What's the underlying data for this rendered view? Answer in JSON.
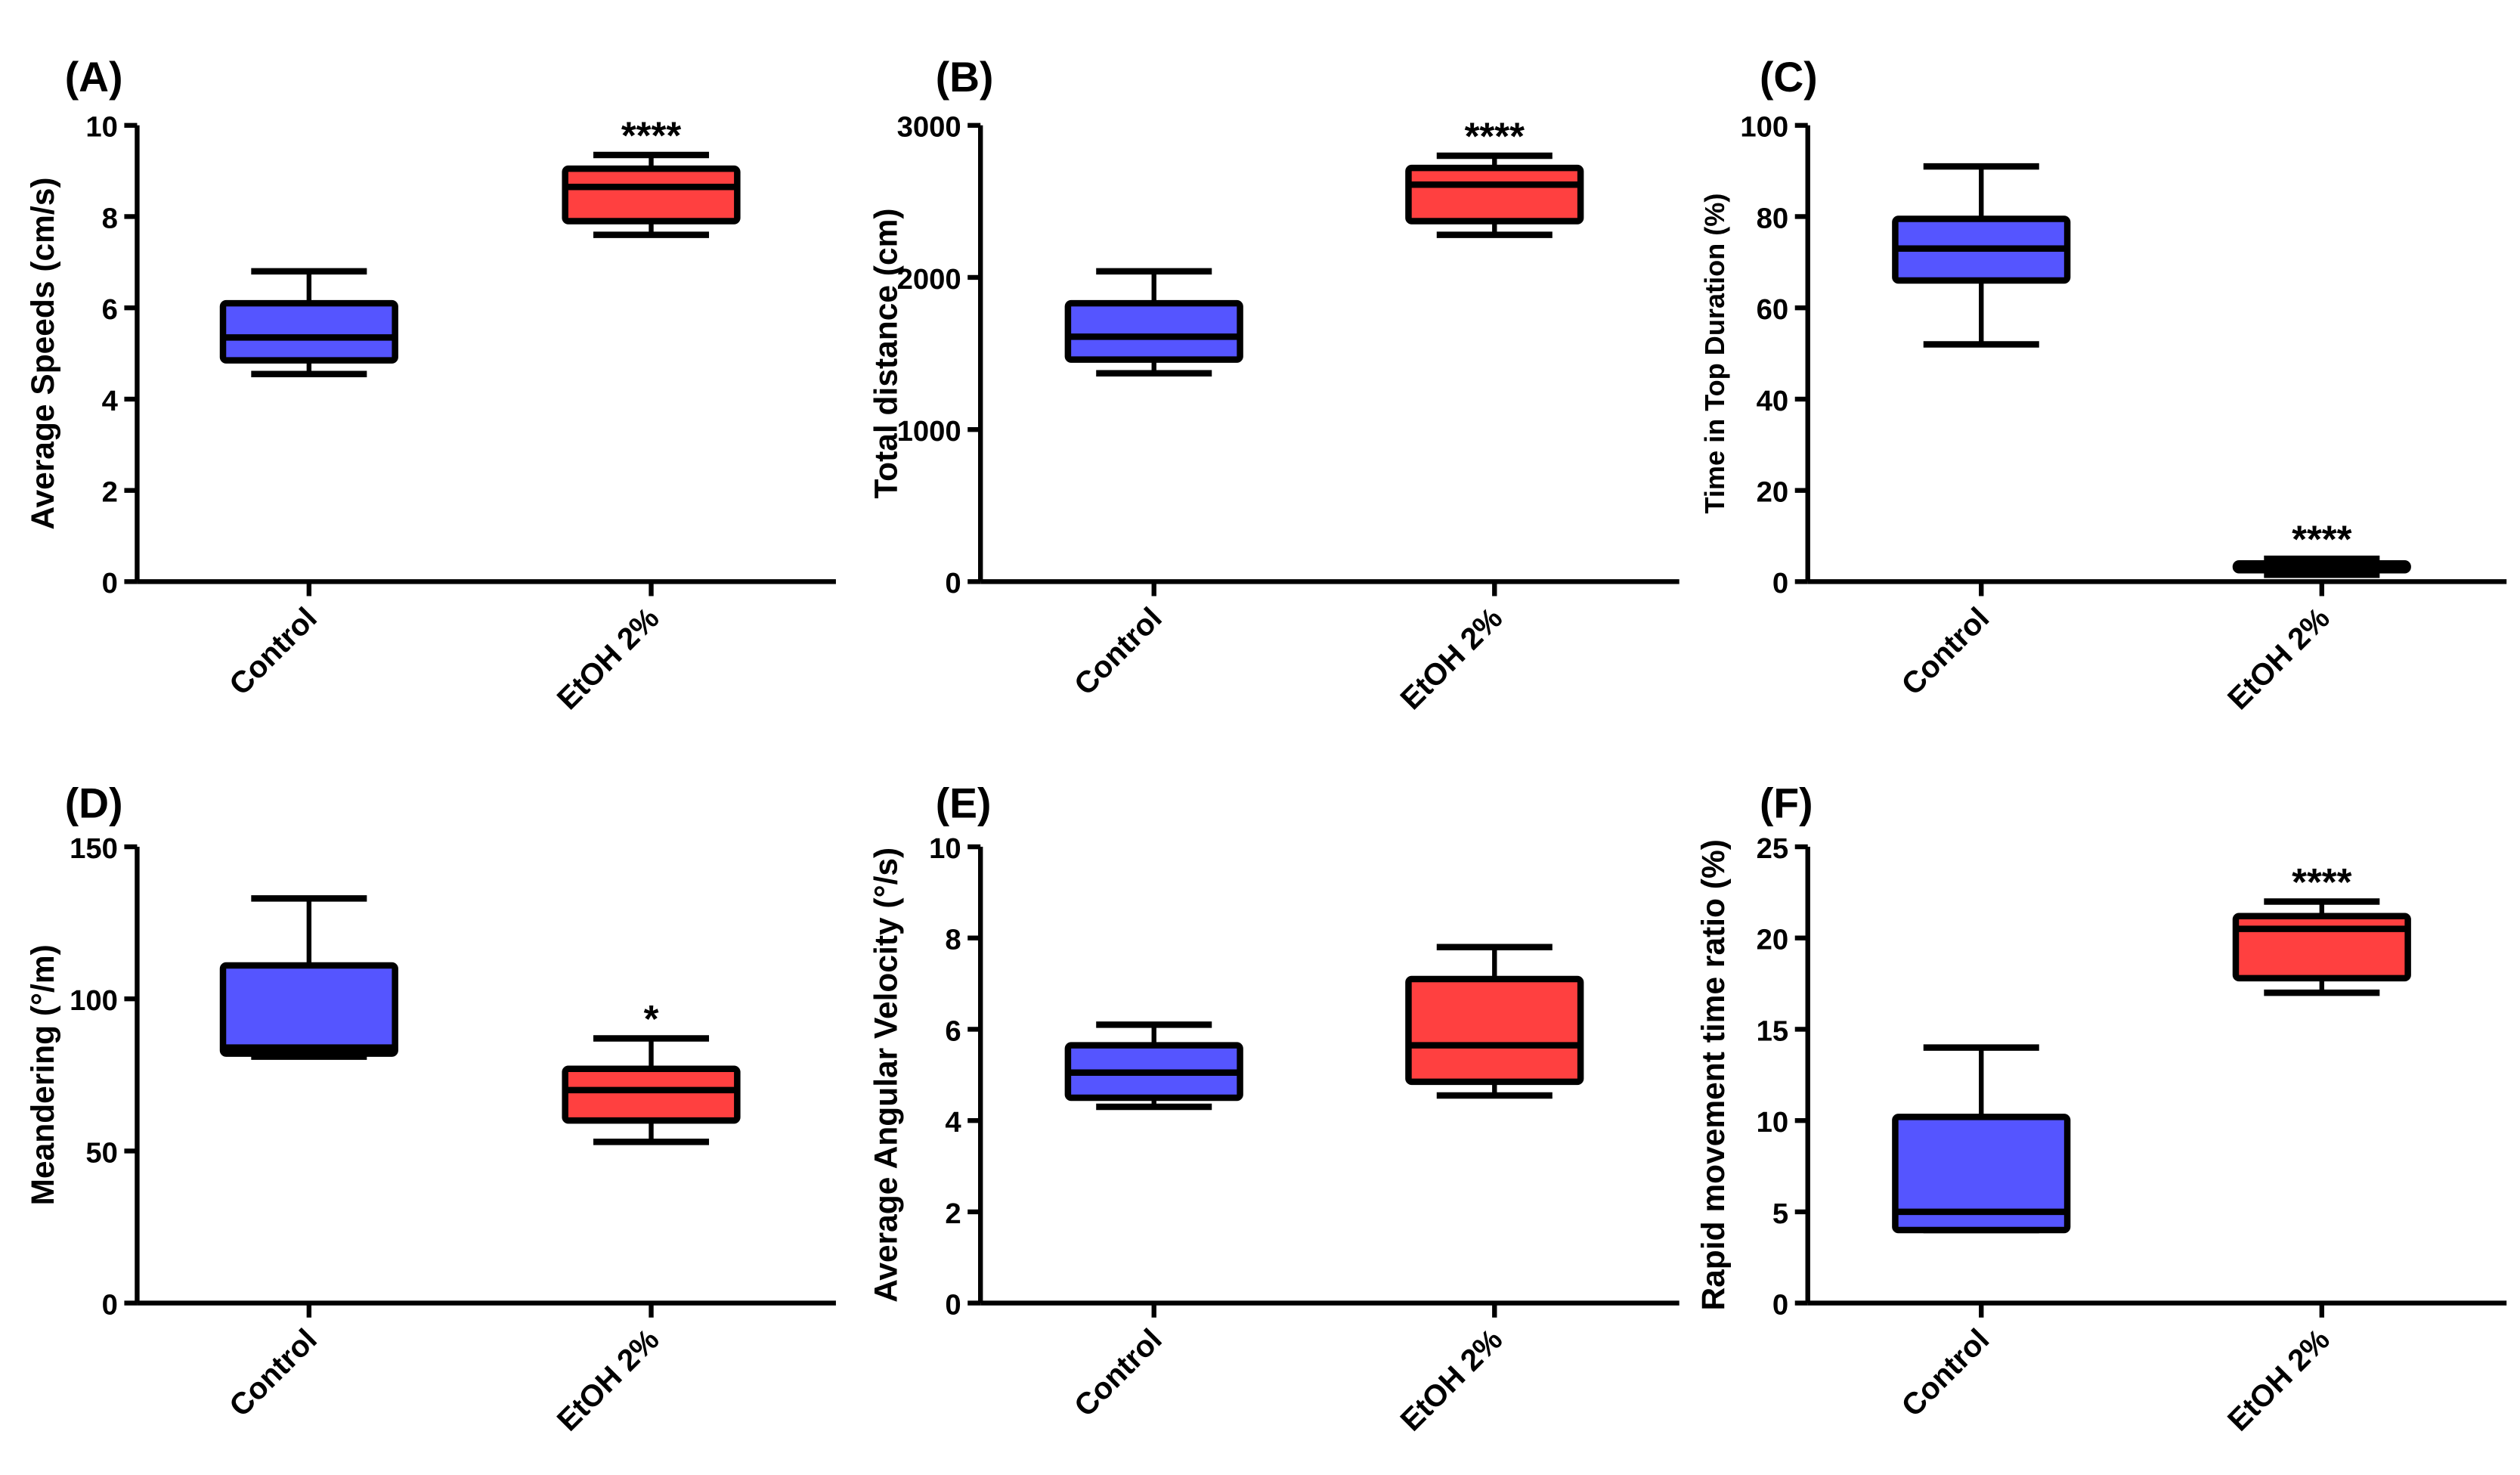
{
  "colors": {
    "Control": "#5555ff",
    "EtOH 2%": "#ff4040",
    "stroke": "#000000"
  },
  "chart_data": [
    {
      "panel": "(A)",
      "type": "box",
      "ylabel": "Average Speeds (cm/s)",
      "ylim": [
        0,
        10
      ],
      "yticks": [
        "0",
        "2",
        "4",
        "6",
        "8",
        "10"
      ],
      "tick_values": [
        0,
        2,
        4,
        6,
        8,
        10
      ],
      "categories": [
        "Control",
        "EtOH 2%"
      ],
      "boxes": [
        {
          "min": 4.55,
          "q1": 4.85,
          "median": 5.35,
          "q3": 6.1,
          "max": 6.8,
          "sig": ""
        },
        {
          "min": 7.6,
          "q1": 7.9,
          "median": 8.65,
          "q3": 9.05,
          "max": 9.35,
          "sig": "****"
        }
      ]
    },
    {
      "panel": "(B)",
      "type": "box",
      "ylabel": "Total distance (cm)",
      "ylim": [
        0,
        3000
      ],
      "yticks": [
        "0",
        "1000",
        "2000",
        "3000"
      ],
      "tick_values": [
        0,
        1000,
        2000,
        3000
      ],
      "categories": [
        "Control",
        "EtOH 2%"
      ],
      "boxes": [
        {
          "min": 1370,
          "q1": 1460,
          "median": 1610,
          "q3": 1830,
          "max": 2040,
          "sig": ""
        },
        {
          "min": 2280,
          "q1": 2370,
          "median": 2610,
          "q3": 2720,
          "max": 2800,
          "sig": "****"
        }
      ]
    },
    {
      "panel": "(C)",
      "type": "box",
      "ylabel": "Time in Top Duration (%)",
      "ylim": [
        0,
        100
      ],
      "yticks": [
        "0",
        "20",
        "40",
        "60",
        "80",
        "100"
      ],
      "tick_values": [
        0,
        20,
        40,
        60,
        80,
        100
      ],
      "categories": [
        "Control",
        "EtOH 2%"
      ],
      "boxes": [
        {
          "min": 52,
          "q1": 66,
          "median": 73,
          "q3": 79.5,
          "max": 91,
          "sig": ""
        },
        {
          "min": 1.5,
          "q1": 2.5,
          "median": 3.3,
          "q3": 4,
          "max": 5,
          "sig": "****"
        }
      ]
    },
    {
      "panel": "(D)",
      "type": "box",
      "ylabel": "Meandering (°/m)",
      "ylim": [
        0,
        150
      ],
      "yticks": [
        "0",
        "50",
        "100",
        "150"
      ],
      "tick_values": [
        0,
        50,
        100,
        150
      ],
      "categories": [
        "Control",
        "EtOH 2%"
      ],
      "boxes": [
        {
          "min": 81,
          "q1": 82,
          "median": 84,
          "q3": 111,
          "max": 133,
          "sig": ""
        },
        {
          "min": 53,
          "q1": 60,
          "median": 70,
          "q3": 77,
          "max": 87,
          "sig": "*"
        }
      ]
    },
    {
      "panel": "(E)",
      "type": "box",
      "ylabel": "Average Angular Velocity (°/s)",
      "ylim": [
        0,
        10
      ],
      "yticks": [
        "0",
        "2",
        "4",
        "6",
        "8",
        "10"
      ],
      "tick_values": [
        0,
        2,
        4,
        6,
        8,
        10
      ],
      "categories": [
        "Control",
        "EtOH 2%"
      ],
      "boxes": [
        {
          "min": 4.3,
          "q1": 4.5,
          "median": 5.05,
          "q3": 5.65,
          "max": 6.1,
          "sig": ""
        },
        {
          "min": 4.55,
          "q1": 4.85,
          "median": 5.65,
          "q3": 7.1,
          "max": 7.8,
          "sig": ""
        }
      ]
    },
    {
      "panel": "(F)",
      "type": "box",
      "ylabel": "Rapid movement time ratio (%)",
      "ylim": [
        0,
        25
      ],
      "yticks": [
        "0",
        "5",
        "10",
        "15",
        "20",
        "25"
      ],
      "tick_values": [
        0,
        5,
        10,
        15,
        20,
        25
      ],
      "categories": [
        "Control",
        "EtOH 2%"
      ],
      "boxes": [
        {
          "min": 4,
          "q1": 4,
          "median": 5,
          "q3": 10.2,
          "max": 14,
          "sig": ""
        },
        {
          "min": 17,
          "q1": 17.8,
          "median": 20.5,
          "q3": 21.2,
          "max": 22,
          "sig": "****"
        }
      ]
    }
  ]
}
